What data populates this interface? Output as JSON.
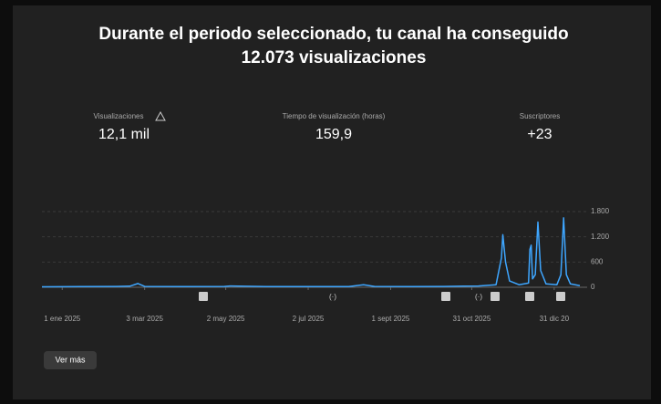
{
  "header": {
    "title": "Durante el periodo seleccionado, tu canal ha conseguido",
    "subtitle": "12.073 visualizaciones"
  },
  "metrics": [
    {
      "label": "Visualizaciones",
      "value": "12,1 mil"
    },
    {
      "label": "Tiempo de visualización (horas)",
      "value": "159,9"
    },
    {
      "label": "Suscriptores",
      "value": "+23"
    }
  ],
  "chart_data": {
    "type": "line",
    "color": "#3ea6ff",
    "grid": true,
    "x": [
      "2024-12-17",
      "2025-01-15",
      "2025-02-10",
      "2025-02-20",
      "2025-02-26",
      "2025-03-03",
      "2025-04-01",
      "2025-05-01",
      "2025-05-05",
      "2025-06-01",
      "2025-07-01",
      "2025-08-01",
      "2025-08-12",
      "2025-08-20",
      "2025-09-15",
      "2025-10-10",
      "2025-10-25",
      "2025-11-05",
      "2025-11-18",
      "2025-11-22",
      "2025-11-23",
      "2025-11-25",
      "2025-11-28",
      "2025-12-05",
      "2025-12-12",
      "2025-12-13",
      "2025-12-14",
      "2025-12-15",
      "2025-12-17",
      "2025-12-19",
      "2025-12-21",
      "2025-12-25",
      "2026-01-02",
      "2026-01-05",
      "2026-01-07",
      "2026-01-09",
      "2026-01-12",
      "2026-01-19"
    ],
    "values": [
      10,
      15,
      20,
      25,
      90,
      20,
      15,
      20,
      30,
      15,
      15,
      15,
      60,
      20,
      15,
      20,
      25,
      30,
      60,
      700,
      1250,
      600,
      150,
      60,
      100,
      900,
      1000,
      200,
      300,
      1550,
      400,
      80,
      60,
      300,
      1650,
      300,
      80,
      40
    ],
    "xlim": [
      "2024-12-17",
      "2026-01-19"
    ],
    "xticks": [
      {
        "value": "2025-01-01",
        "label": "1 ene 2025"
      },
      {
        "value": "2025-03-03",
        "label": "3 mar 2025"
      },
      {
        "value": "2025-05-02",
        "label": "2 may 2025"
      },
      {
        "value": "2025-07-02",
        "label": "2 jul 2025"
      },
      {
        "value": "2025-09-01",
        "label": "1 sept 2025"
      },
      {
        "value": "2025-10-31",
        "label": "31 oct 2025"
      },
      {
        "value": "2025-12-31",
        "label": "31 dic 20"
      }
    ],
    "ylim": [
      0,
      1800
    ],
    "yticks": [
      0,
      600,
      {
        "value": 1200,
        "label": "1.200"
      },
      {
        "value": 1800,
        "label": "1.800"
      }
    ]
  },
  "button": {
    "label": "Ver más"
  }
}
